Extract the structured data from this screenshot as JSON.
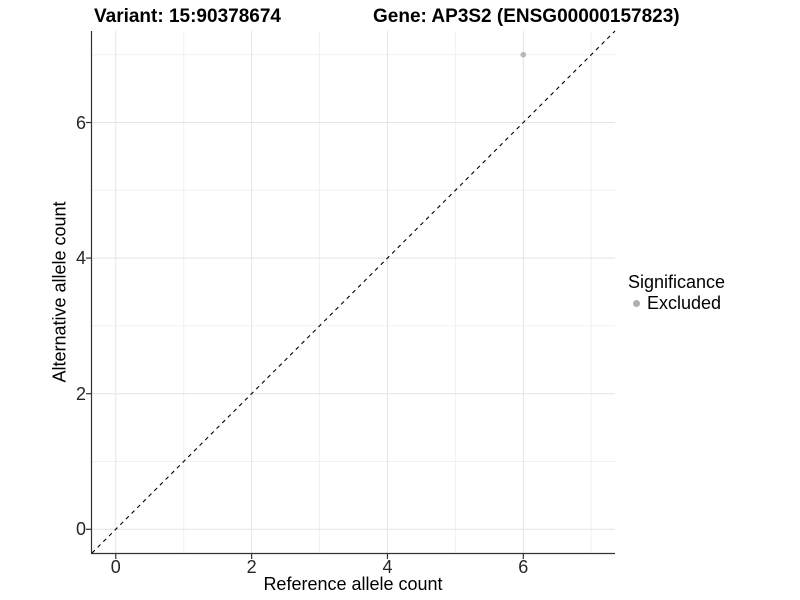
{
  "chart_data": {
    "type": "scatter",
    "title_left": "Variant: 15:90378674",
    "title_right": "Gene: AP3S2 (ENSG00000157823)",
    "xlabel": "Reference allele count",
    "ylabel": "Alternative allele count",
    "xlim": [
      -0.35,
      7.35
    ],
    "ylim": [
      -0.35,
      7.35
    ],
    "x_ticks": [
      0,
      2,
      4,
      6
    ],
    "y_ticks": [
      0,
      2,
      4,
      6
    ],
    "x_minor": [
      1,
      3,
      5,
      7
    ],
    "y_minor": [
      1,
      3,
      5,
      7
    ],
    "grid": true,
    "points": [
      {
        "x": 6,
        "y": 7,
        "significance": "Excluded",
        "color": "#b8b8b8"
      }
    ],
    "abline": {
      "slope": 1,
      "intercept": 0,
      "style": "dashed",
      "color": "#000000"
    },
    "legend": {
      "position": "right",
      "title": "Significance",
      "items": [
        {
          "label": "Excluded",
          "color": "#b0b0b0"
        }
      ]
    },
    "colors": {
      "grid_major": "#e4e4e4",
      "grid_minor": "#f0f0f0",
      "axis_line": "#333333",
      "point": "#b8b8b8"
    }
  }
}
